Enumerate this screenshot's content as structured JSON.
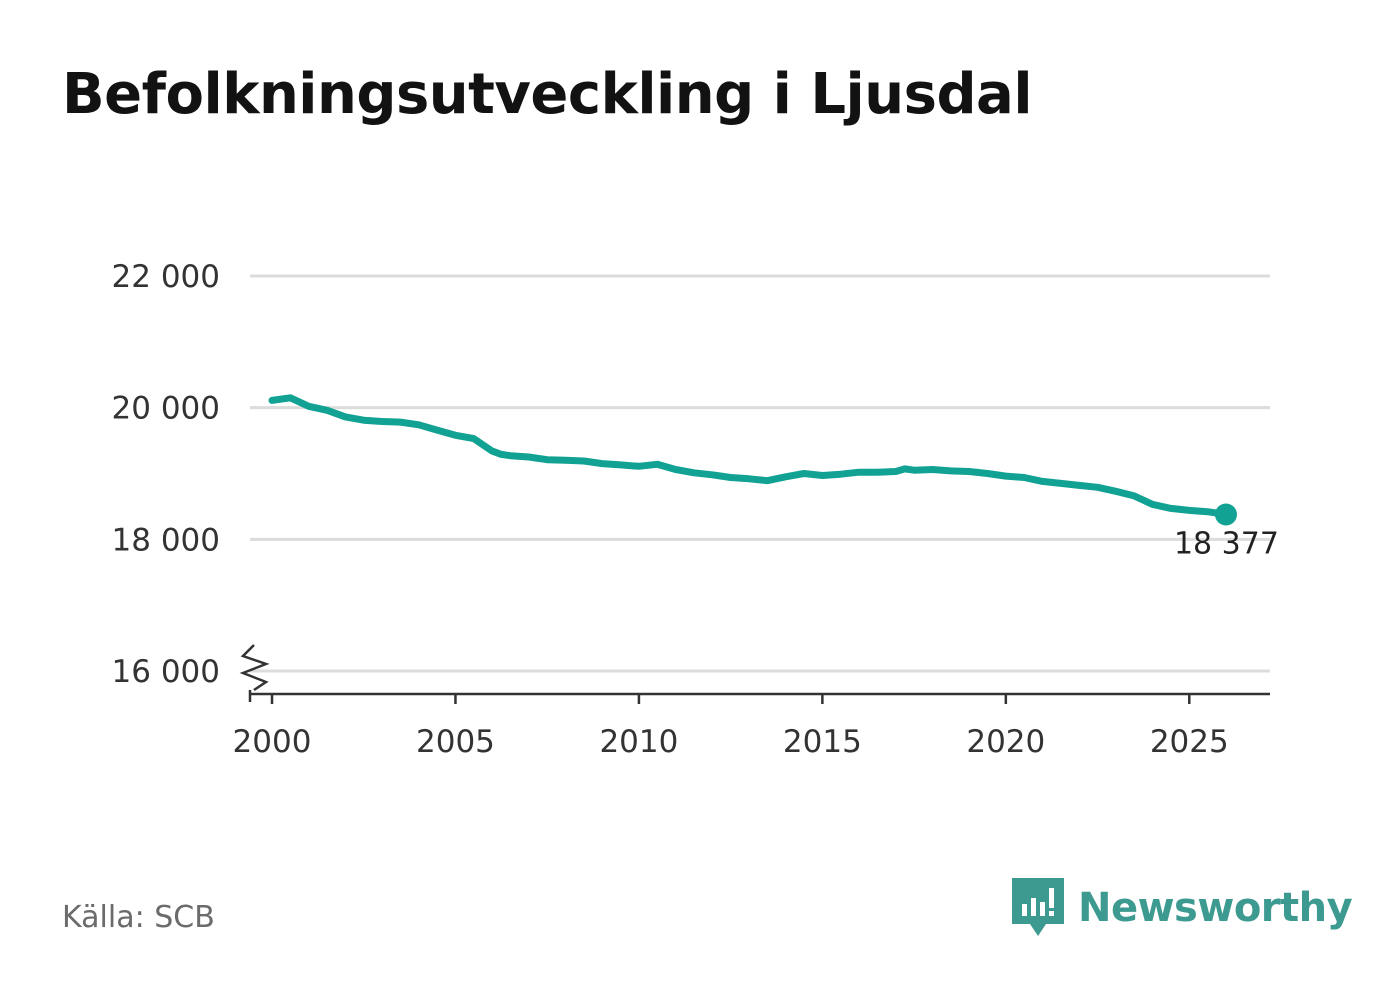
{
  "title": "Befolkningsutveckling i Ljusdal",
  "source": "Källa: SCB",
  "brand": {
    "name": "Newsworthy",
    "icon": "newsworthy-logo-icon",
    "color": "#3d9a90"
  },
  "chart_data": {
    "type": "line",
    "color": "#11a293",
    "ylim": [
      16000,
      22000
    ],
    "xlim": [
      1999.4,
      2027.2
    ],
    "y_ticks": [
      {
        "value": 16000,
        "label": "16 000"
      },
      {
        "value": 18000,
        "label": "18 000"
      },
      {
        "value": 20000,
        "label": "20 000"
      },
      {
        "value": 22000,
        "label": "22 000"
      }
    ],
    "x_ticks": [
      {
        "value": 2000,
        "label": "2000"
      },
      {
        "value": 2005,
        "label": "2005"
      },
      {
        "value": 2010,
        "label": "2010"
      },
      {
        "value": 2015,
        "label": "2015"
      },
      {
        "value": 2020,
        "label": "2020"
      },
      {
        "value": 2025,
        "label": "2025"
      }
    ],
    "axis_break": true,
    "grid": true,
    "series": [
      {
        "x": [
          2000.0,
          2000.5,
          2001.0,
          2001.5,
          2002.0,
          2002.5,
          2003.0,
          2003.5,
          2004.0,
          2004.5,
          2005.0,
          2005.5,
          2006.0,
          2006.25,
          2006.5,
          2007.0,
          2007.5,
          2008.0,
          2008.5,
          2009.0,
          2009.5,
          2010.0,
          2010.5,
          2011.0,
          2011.5,
          2012.0,
          2012.5,
          2013.0,
          2013.5,
          2014.0,
          2014.5,
          2015.0,
          2015.5,
          2016.0,
          2016.5,
          2017.0,
          2017.25,
          2017.5,
          2018.0,
          2018.5,
          2019.0,
          2019.5,
          2020.0,
          2020.5,
          2021.0,
          2021.5,
          2022.0,
          2022.5,
          2023.0,
          2023.5,
          2024.0,
          2024.5,
          2025.0,
          2025.5,
          2026.0
        ],
        "y": [
          20110,
          20150,
          20020,
          19960,
          19860,
          19810,
          19790,
          19780,
          19740,
          19660,
          19580,
          19530,
          19340,
          19290,
          19270,
          19250,
          19210,
          19200,
          19190,
          19150,
          19130,
          19110,
          19140,
          19060,
          19010,
          18980,
          18940,
          18920,
          18890,
          18950,
          19000,
          18970,
          18990,
          19020,
          19020,
          19030,
          19070,
          19050,
          19060,
          19040,
          19030,
          19000,
          18960,
          18940,
          18880,
          18850,
          18820,
          18790,
          18730,
          18660,
          18530,
          18470,
          18440,
          18420,
          18377
        ]
      }
    ],
    "end_label": {
      "value": 18377,
      "label": "18 377"
    }
  }
}
